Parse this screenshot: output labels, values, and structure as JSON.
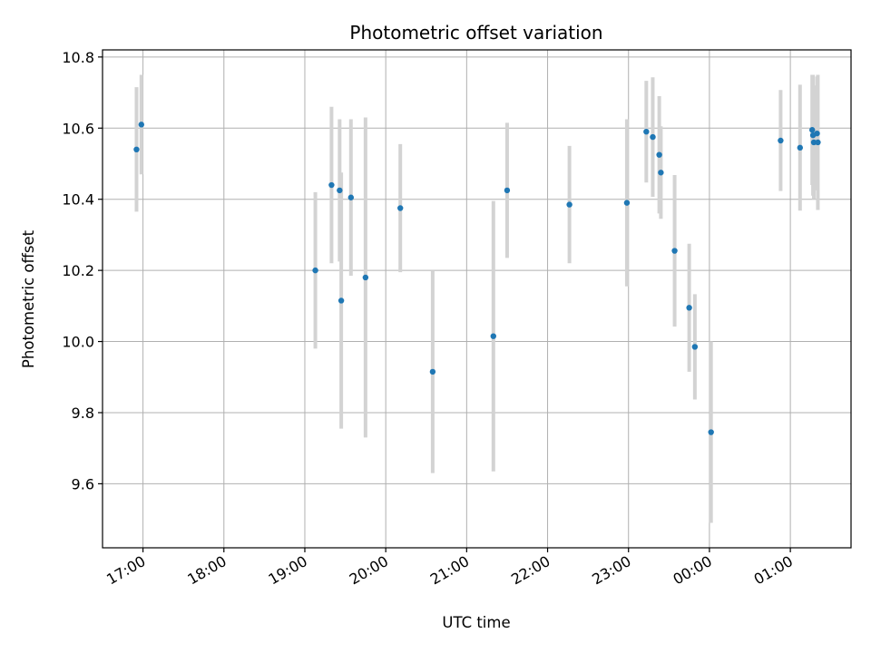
{
  "chart_data": {
    "type": "scatter",
    "title": "Photometric offset variation",
    "xlabel": "UTC time",
    "ylabel": "Photometric offset",
    "x_unit": "UTC time (hours; values past 24 fall on the next day)",
    "xlim": [
      16.5,
      25.75
    ],
    "ylim": [
      9.42,
      10.82
    ],
    "grid": true,
    "x_ticks": [
      {
        "value": 17,
        "label": "17:00"
      },
      {
        "value": 18,
        "label": "18:00"
      },
      {
        "value": 19,
        "label": "19:00"
      },
      {
        "value": 20,
        "label": "20:00"
      },
      {
        "value": 21,
        "label": "21:00"
      },
      {
        "value": 22,
        "label": "22:00"
      },
      {
        "value": 23,
        "label": "23:00"
      },
      {
        "value": 24,
        "label": "00:00"
      },
      {
        "value": 25,
        "label": "01:00"
      }
    ],
    "y_ticks": [
      {
        "value": 9.6,
        "label": "9.6"
      },
      {
        "value": 9.8,
        "label": "9.8"
      },
      {
        "value": 10.0,
        "label": "10.0"
      },
      {
        "value": 10.2,
        "label": "10.2"
      },
      {
        "value": 10.4,
        "label": "10.4"
      },
      {
        "value": 10.6,
        "label": "10.6"
      },
      {
        "value": 10.8,
        "label": "10.8"
      }
    ],
    "colors": {
      "point": "#1f77b4",
      "errorbar": "#d3d3d3",
      "grid": "#b0b0b0"
    },
    "points": [
      {
        "x": 16.92,
        "y": 10.54,
        "err": 0.175
      },
      {
        "x": 16.98,
        "y": 10.61,
        "err": 0.14
      },
      {
        "x": 19.13,
        "y": 10.2,
        "err": 0.22
      },
      {
        "x": 19.33,
        "y": 10.44,
        "err": 0.22
      },
      {
        "x": 19.43,
        "y": 10.425,
        "err": 0.2
      },
      {
        "x": 19.45,
        "y": 10.115,
        "err": 0.36
      },
      {
        "x": 19.57,
        "y": 10.405,
        "err": 0.22
      },
      {
        "x": 19.75,
        "y": 10.18,
        "err": 0.45
      },
      {
        "x": 20.18,
        "y": 10.375,
        "err": 0.18
      },
      {
        "x": 20.58,
        "y": 9.915,
        "err": 0.285
      },
      {
        "x": 21.33,
        "y": 10.015,
        "err": 0.38
      },
      {
        "x": 21.5,
        "y": 10.425,
        "err": 0.19
      },
      {
        "x": 22.27,
        "y": 10.385,
        "err": 0.165
      },
      {
        "x": 22.98,
        "y": 10.39,
        "err": 0.235
      },
      {
        "x": 23.22,
        "y": 10.59,
        "err": 0.143
      },
      {
        "x": 23.3,
        "y": 10.575,
        "err": 0.168
      },
      {
        "x": 23.38,
        "y": 10.525,
        "err": 0.165
      },
      {
        "x": 23.4,
        "y": 10.475,
        "err": 0.13
      },
      {
        "x": 23.57,
        "y": 10.255,
        "err": 0.213
      },
      {
        "x": 23.75,
        "y": 10.095,
        "err": 0.18
      },
      {
        "x": 23.82,
        "y": 9.985,
        "err": 0.148
      },
      {
        "x": 24.02,
        "y": 9.745,
        "err": 0.255
      },
      {
        "x": 24.88,
        "y": 10.565,
        "err": 0.142
      },
      {
        "x": 25.12,
        "y": 10.545,
        "err": 0.177
      },
      {
        "x": 25.27,
        "y": 10.595,
        "err": 0.155
      },
      {
        "x": 25.28,
        "y": 10.58,
        "err": 0.17
      },
      {
        "x": 25.29,
        "y": 10.56,
        "err": 0.16
      },
      {
        "x": 25.33,
        "y": 10.585,
        "err": 0.16
      },
      {
        "x": 25.34,
        "y": 10.56,
        "err": 0.19
      }
    ]
  }
}
